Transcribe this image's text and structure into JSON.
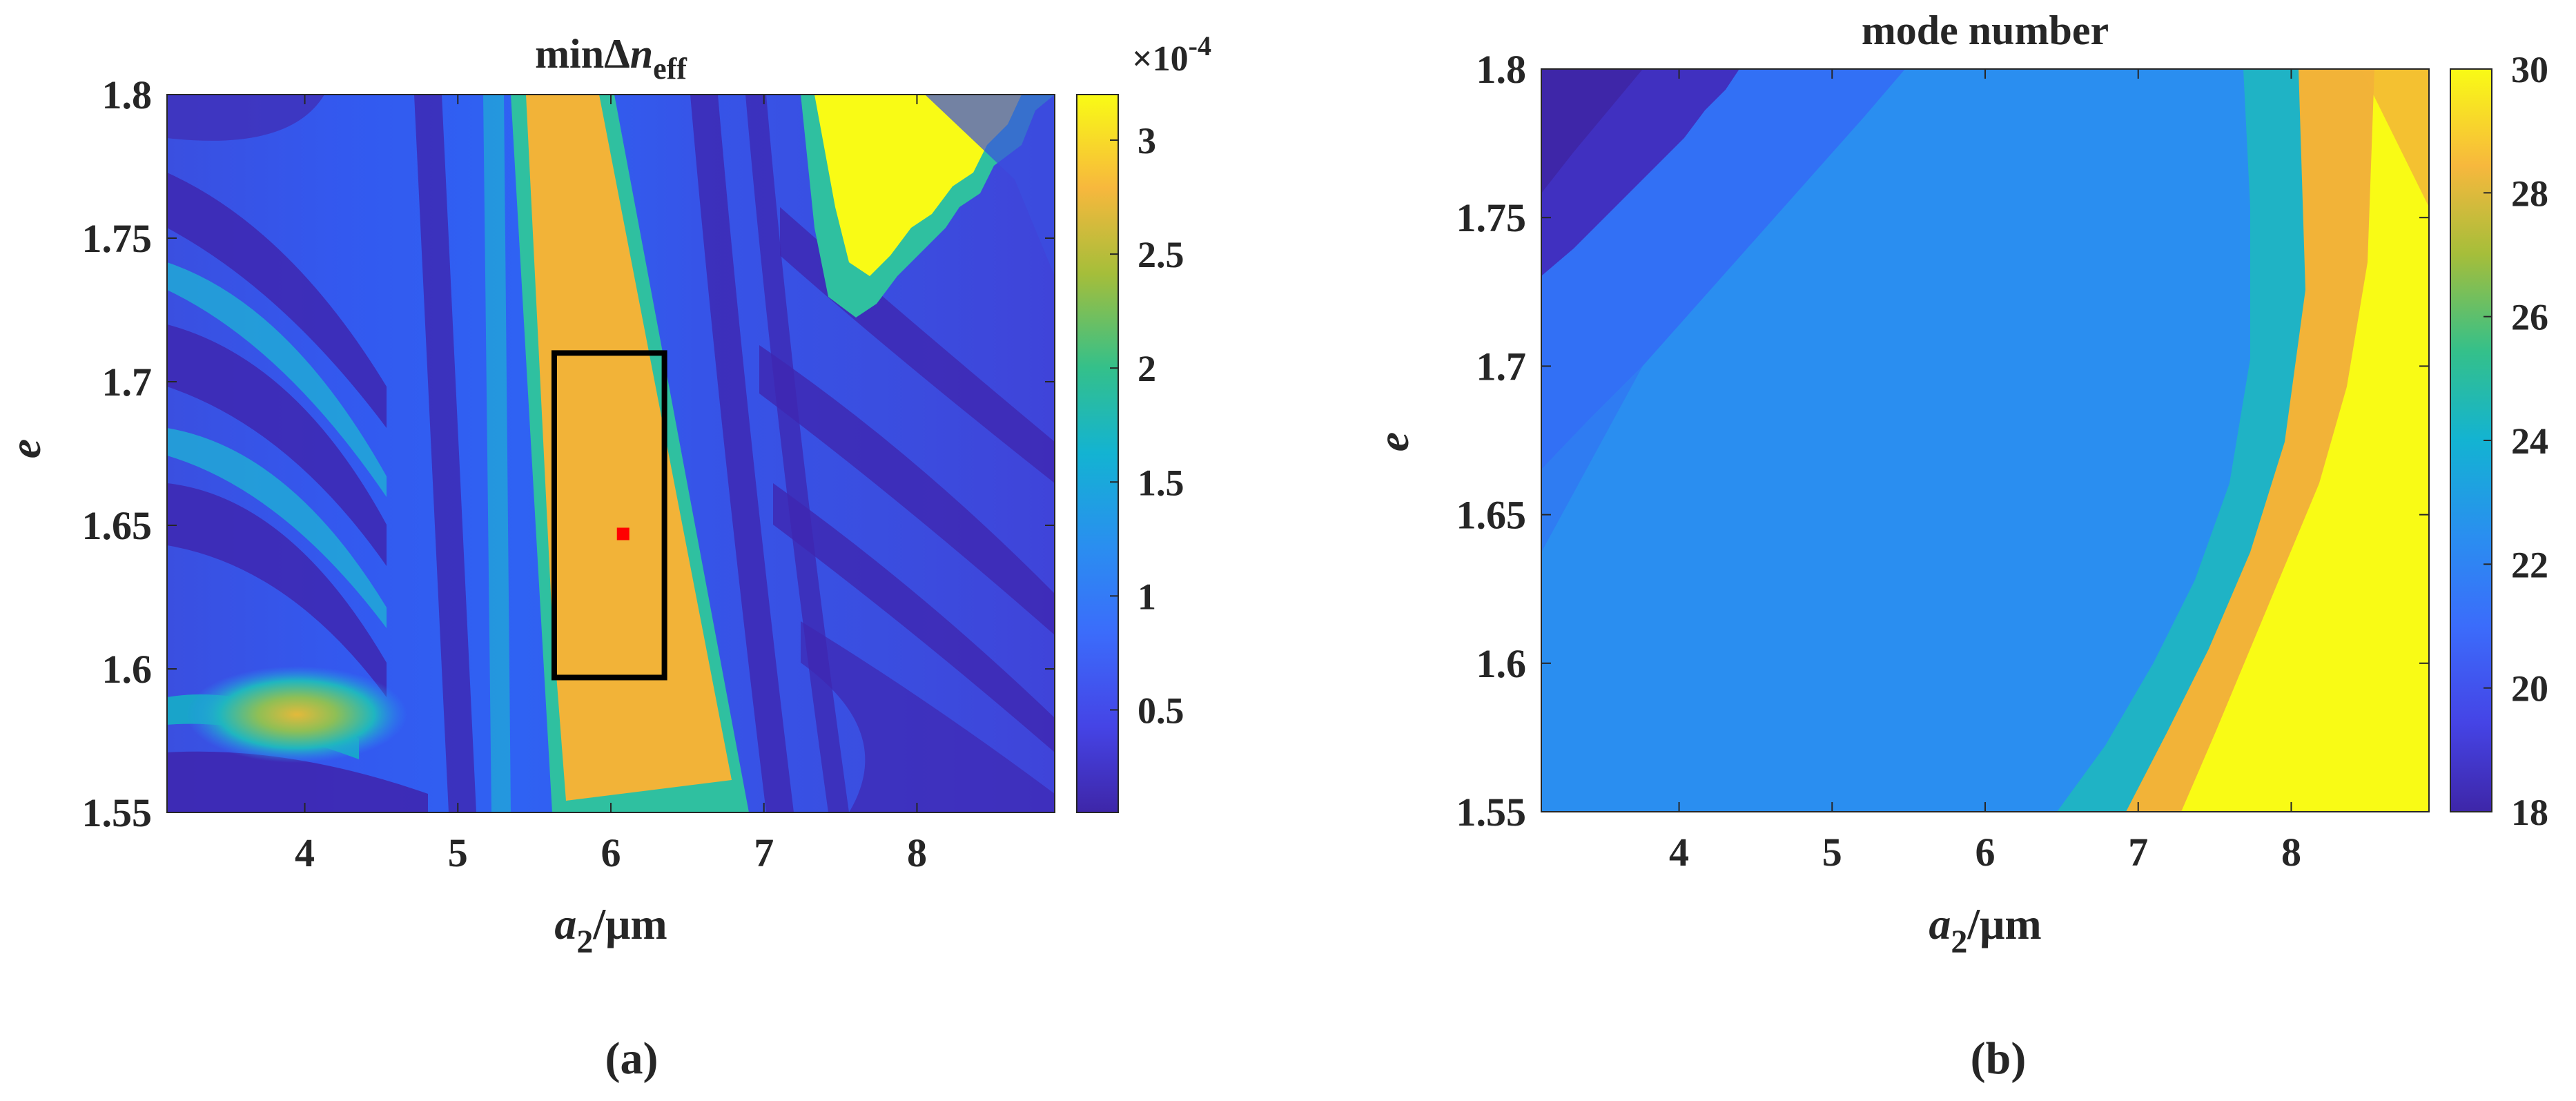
{
  "chart_data": [
    {
      "type": "heatmap",
      "panel_label": "(a)",
      "title": {
        "main": "minΔ",
        "italic": "n",
        "subscript": "eff"
      },
      "xlabel": {
        "italic": "a",
        "subscript": "2",
        "rest": "/μm"
      },
      "ylabel": "e",
      "xlim": [
        3.1,
        8.9
      ],
      "ylim": [
        1.55,
        1.8
      ],
      "xticks": [
        4,
        5,
        6,
        7,
        8
      ],
      "xtick_labels": [
        "4",
        "5",
        "6",
        "7",
        "8"
      ],
      "yticks": [
        1.55,
        1.6,
        1.65,
        1.7,
        1.75,
        1.8
      ],
      "ytick_labels": [
        "1.55",
        "1.6",
        "1.65",
        "1.7",
        "1.75",
        "1.8"
      ],
      "colorbar": {
        "min": 0.05,
        "max": 3.2,
        "ticks": [
          0.5,
          1,
          1.5,
          2,
          2.5,
          3
        ],
        "tick_labels": [
          "0.5",
          "1",
          "1.5",
          "2",
          "2.5",
          "3"
        ],
        "multiplier": {
          "base": "×10",
          "exponent": "-4"
        },
        "colormap": "parula"
      },
      "annotations": [
        {
          "type": "rectangle",
          "x": [
            5.63,
            6.35
          ],
          "y": [
            1.597,
            1.71
          ],
          "color": "#000000"
        },
        {
          "type": "marker",
          "x": 6.08,
          "y": 1.647,
          "color": "#ff0000"
        }
      ],
      "grid": false
    },
    {
      "type": "heatmap",
      "panel_label": "(b)",
      "title": "mode number",
      "xlabel": {
        "italic": "a",
        "subscript": "2",
        "rest": "/μm"
      },
      "ylabel": "e",
      "xlim": [
        3.1,
        8.9
      ],
      "ylim": [
        1.55,
        1.8
      ],
      "xticks": [
        4,
        5,
        6,
        7,
        8
      ],
      "xtick_labels": [
        "4",
        "5",
        "6",
        "7",
        "8"
      ],
      "yticks": [
        1.55,
        1.6,
        1.65,
        1.7,
        1.75,
        1.8
      ],
      "ytick_labels": [
        "1.55",
        "1.6",
        "1.65",
        "1.7",
        "1.75",
        "1.8"
      ],
      "colorbar": {
        "min": 18,
        "max": 30,
        "ticks": [
          18,
          20,
          22,
          24,
          26,
          28,
          30
        ],
        "tick_labels": [
          "18",
          "20",
          "22",
          "24",
          "26",
          "28",
          "30"
        ],
        "colormap": "parula"
      },
      "grid": false
    }
  ]
}
